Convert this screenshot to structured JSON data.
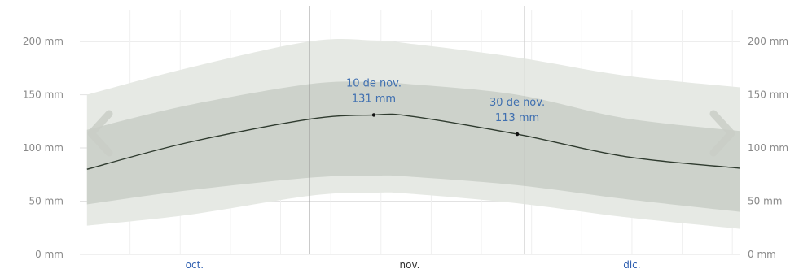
{
  "chart_data": {
    "type": "area",
    "title": "",
    "xlabel": "",
    "ylabel": "",
    "ylim": [
      0,
      210
    ],
    "y_ticks": [
      {
        "value": 0,
        "label": "0 mm"
      },
      {
        "value": 50,
        "label": "50 mm"
      },
      {
        "value": 100,
        "label": "100 mm"
      },
      {
        "value": 150,
        "label": "150 mm"
      },
      {
        "value": 200,
        "label": "200 mm"
      }
    ],
    "x_start": "2023-09-30",
    "x_end": "2023-12-31",
    "x_labels": [
      {
        "date": "2023-10-16",
        "label": "oct.",
        "color": "#2f5fb0"
      },
      {
        "date": "2023-11-15",
        "label": "nov.",
        "color": "#333333"
      },
      {
        "date": "2023-12-16",
        "label": "dic.",
        "color": "#2f5fb0"
      }
    ],
    "month_boundaries": [
      "2023-11-01",
      "2023-12-01"
    ],
    "highlight_lines": [
      "2023-11-01",
      "2023-12-01"
    ],
    "x": [
      "2023-10-01",
      "2023-10-15",
      "2023-11-01",
      "2023-11-10",
      "2023-11-15",
      "2023-11-30",
      "2023-12-15",
      "2023-12-31"
    ],
    "series": [
      {
        "role": "p10",
        "values": [
          27,
          37,
          55,
          58,
          57,
          48,
          35,
          24
        ]
      },
      {
        "role": "p25",
        "values": [
          47,
          60,
          72,
          74,
          73,
          65,
          52,
          40
        ]
      },
      {
        "role": "median",
        "values": [
          80,
          105,
          127,
          131,
          130,
          113,
          92,
          81
        ]
      },
      {
        "role": "p75",
        "values": [
          117,
          140,
          160,
          162,
          160,
          150,
          128,
          116
        ]
      },
      {
        "role": "p90",
        "values": [
          150,
          175,
          200,
          201,
          198,
          185,
          168,
          157
        ]
      }
    ],
    "annotations": [
      {
        "date": "2023-11-10",
        "value": 131,
        "line1": "10 de nov.",
        "line2": "131 mm"
      },
      {
        "date": "2023-11-30",
        "value": 113,
        "line1": "30 de nov.",
        "line2": "113 mm"
      }
    ],
    "colors": {
      "band_outer": "#e6e9e4",
      "band_inner": "#cdd2cb",
      "median_line": "#2f3b2f",
      "grid": "#e2e2e2",
      "highlight": "#8a8a8a",
      "arrow": "#c9cec7"
    },
    "nav": {
      "left": "arrow-left-icon",
      "right": "arrow-right-icon"
    }
  }
}
